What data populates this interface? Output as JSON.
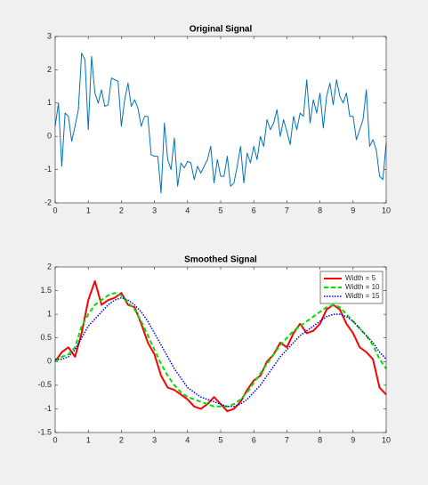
{
  "chart_data": [
    {
      "type": "line",
      "title": "Original Signal",
      "x": [
        0,
        0.1,
        0.2,
        0.3,
        0.4,
        0.5,
        0.6,
        0.7,
        0.8,
        0.9,
        1,
        1.1,
        1.2,
        1.3,
        1.4,
        1.5,
        1.6,
        1.7,
        1.8,
        1.9,
        2,
        2.1,
        2.2,
        2.3,
        2.4,
        2.5,
        2.6,
        2.7,
        2.8,
        2.9,
        3,
        3.1,
        3.2,
        3.3,
        3.4,
        3.5,
        3.6,
        3.7,
        3.8,
        3.9,
        4,
        4.1,
        4.2,
        4.3,
        4.4,
        4.5,
        4.6,
        4.7,
        4.8,
        4.9,
        5,
        5.1,
        5.2,
        5.3,
        5.4,
        5.5,
        5.6,
        5.7,
        5.8,
        5.9,
        6,
        6.1,
        6.2,
        6.3,
        6.4,
        6.5,
        6.6,
        6.7,
        6.8,
        6.9,
        7,
        7.1,
        7.2,
        7.3,
        7.4,
        7.5,
        7.6,
        7.7,
        7.8,
        7.9,
        8,
        8.1,
        8.2,
        8.3,
        8.4,
        8.5,
        8.6,
        8.7,
        8.8,
        8.9,
        9,
        9.1,
        9.2,
        9.3,
        9.4,
        9.5,
        9.6,
        9.7,
        9.8,
        9.9,
        10
      ],
      "values": [
        0.3,
        1.0,
        -0.9,
        0.7,
        0.6,
        -0.15,
        0.3,
        0.8,
        2.5,
        2.3,
        0.2,
        2.4,
        1.3,
        1.0,
        1.4,
        0.9,
        0.95,
        1.75,
        1.7,
        1.65,
        0.3,
        1.1,
        1.6,
        0.9,
        1.1,
        0.85,
        0.3,
        0.6,
        0.6,
        -0.55,
        -0.6,
        -0.6,
        -1.7,
        0.4,
        -0.7,
        -1.0,
        -0.05,
        -1.5,
        -0.8,
        -0.95,
        -0.75,
        -0.8,
        -1.3,
        -0.9,
        -1.1,
        -0.9,
        -0.7,
        -0.3,
        -1.4,
        -0.7,
        -1.2,
        -1.2,
        -0.6,
        -1.5,
        -1.4,
        -0.9,
        -0.3,
        -1.4,
        -0.5,
        -0.8,
        -0.3,
        -0.7,
        0.0,
        -0.3,
        0.5,
        0.2,
        0.4,
        0.8,
        0.0,
        0.5,
        0.15,
        -0.25,
        0.6,
        0.2,
        0.7,
        0.6,
        1.7,
        0.4,
        1.1,
        0.7,
        1.3,
        0.25,
        1.2,
        1.6,
        0.95,
        1.7,
        1.2,
        1.0,
        1.3,
        0.6,
        0.6,
        -0.1,
        0.2,
        0.5,
        1.4,
        -0.3,
        -0.1,
        -0.4,
        -1.2,
        -1.3,
        -0.2
      ],
      "color": "#0072bd",
      "xlim": [
        0,
        10
      ],
      "xticks": [
        0,
        1,
        2,
        3,
        4,
        5,
        6,
        7,
        8,
        9,
        10
      ],
      "ylim": [
        -2,
        3
      ],
      "yticks": [
        -2,
        -1,
        0,
        1,
        2,
        3
      ]
    },
    {
      "type": "line",
      "title": "Smoothed Signal",
      "x": [
        0,
        0.2,
        0.4,
        0.6,
        0.8,
        1,
        1.2,
        1.4,
        1.6,
        1.8,
        2,
        2.2,
        2.4,
        2.6,
        2.8,
        3,
        3.2,
        3.4,
        3.6,
        3.8,
        4,
        4.2,
        4.4,
        4.6,
        4.8,
        5,
        5.2,
        5.4,
        5.6,
        5.8,
        6,
        6.2,
        6.4,
        6.6,
        6.8,
        7,
        7.2,
        7.4,
        7.6,
        7.8,
        8,
        8.2,
        8.4,
        8.6,
        8.8,
        9,
        9.2,
        9.4,
        9.6,
        9.8,
        10
      ],
      "series": [
        {
          "name": "Width = 5",
          "color": "#ff0000",
          "linestyle": "solid",
          "values": [
            0.0,
            0.2,
            0.3,
            0.1,
            0.6,
            1.3,
            1.7,
            1.2,
            1.3,
            1.35,
            1.45,
            1.2,
            1.15,
            0.8,
            0.4,
            0.15,
            -0.3,
            -0.55,
            -0.6,
            -0.7,
            -0.8,
            -0.95,
            -1.0,
            -0.9,
            -0.75,
            -0.9,
            -1.05,
            -1.0,
            -0.85,
            -0.6,
            -0.4,
            -0.3,
            0.0,
            0.15,
            0.4,
            0.3,
            0.6,
            0.8,
            0.6,
            0.65,
            0.8,
            1.1,
            1.2,
            1.1,
            0.8,
            0.6,
            0.3,
            0.2,
            0.05,
            -0.55,
            -0.7
          ]
        },
        {
          "name": "Width = 10",
          "color": "#00e000",
          "linestyle": "dashed",
          "values": [
            0.0,
            0.1,
            0.15,
            0.3,
            0.75,
            1.0,
            1.2,
            1.3,
            1.4,
            1.45,
            1.4,
            1.25,
            1.1,
            0.85,
            0.55,
            0.25,
            -0.05,
            -0.3,
            -0.5,
            -0.65,
            -0.75,
            -0.8,
            -0.85,
            -0.9,
            -0.95,
            -0.95,
            -0.95,
            -0.9,
            -0.8,
            -0.65,
            -0.45,
            -0.25,
            -0.05,
            0.15,
            0.35,
            0.5,
            0.65,
            0.75,
            0.85,
            0.95,
            1.05,
            1.15,
            1.2,
            1.15,
            1.0,
            0.85,
            0.7,
            0.55,
            0.35,
            0.05,
            -0.15
          ]
        },
        {
          "name": "Width = 15",
          "color": "#0000ff",
          "linestyle": "dotted",
          "values": [
            0.05,
            0.05,
            0.1,
            0.25,
            0.5,
            0.75,
            0.9,
            1.05,
            1.2,
            1.3,
            1.35,
            1.3,
            1.2,
            1.05,
            0.85,
            0.6,
            0.35,
            0.1,
            -0.15,
            -0.35,
            -0.55,
            -0.65,
            -0.75,
            -0.8,
            -0.85,
            -0.9,
            -0.95,
            -0.95,
            -0.9,
            -0.8,
            -0.65,
            -0.5,
            -0.3,
            -0.1,
            0.1,
            0.25,
            0.4,
            0.55,
            0.65,
            0.75,
            0.85,
            0.95,
            1.0,
            1.0,
            0.95,
            0.85,
            0.7,
            0.55,
            0.4,
            0.2,
            0.05
          ]
        }
      ],
      "legend": "northeast",
      "xlim": [
        0,
        10
      ],
      "xticks": [
        0,
        1,
        2,
        3,
        4,
        5,
        6,
        7,
        8,
        9,
        10
      ],
      "ylim": [
        -1.5,
        2
      ],
      "yticks": [
        -1.5,
        -1,
        -0.5,
        0,
        0.5,
        1,
        1.5,
        2
      ]
    }
  ]
}
